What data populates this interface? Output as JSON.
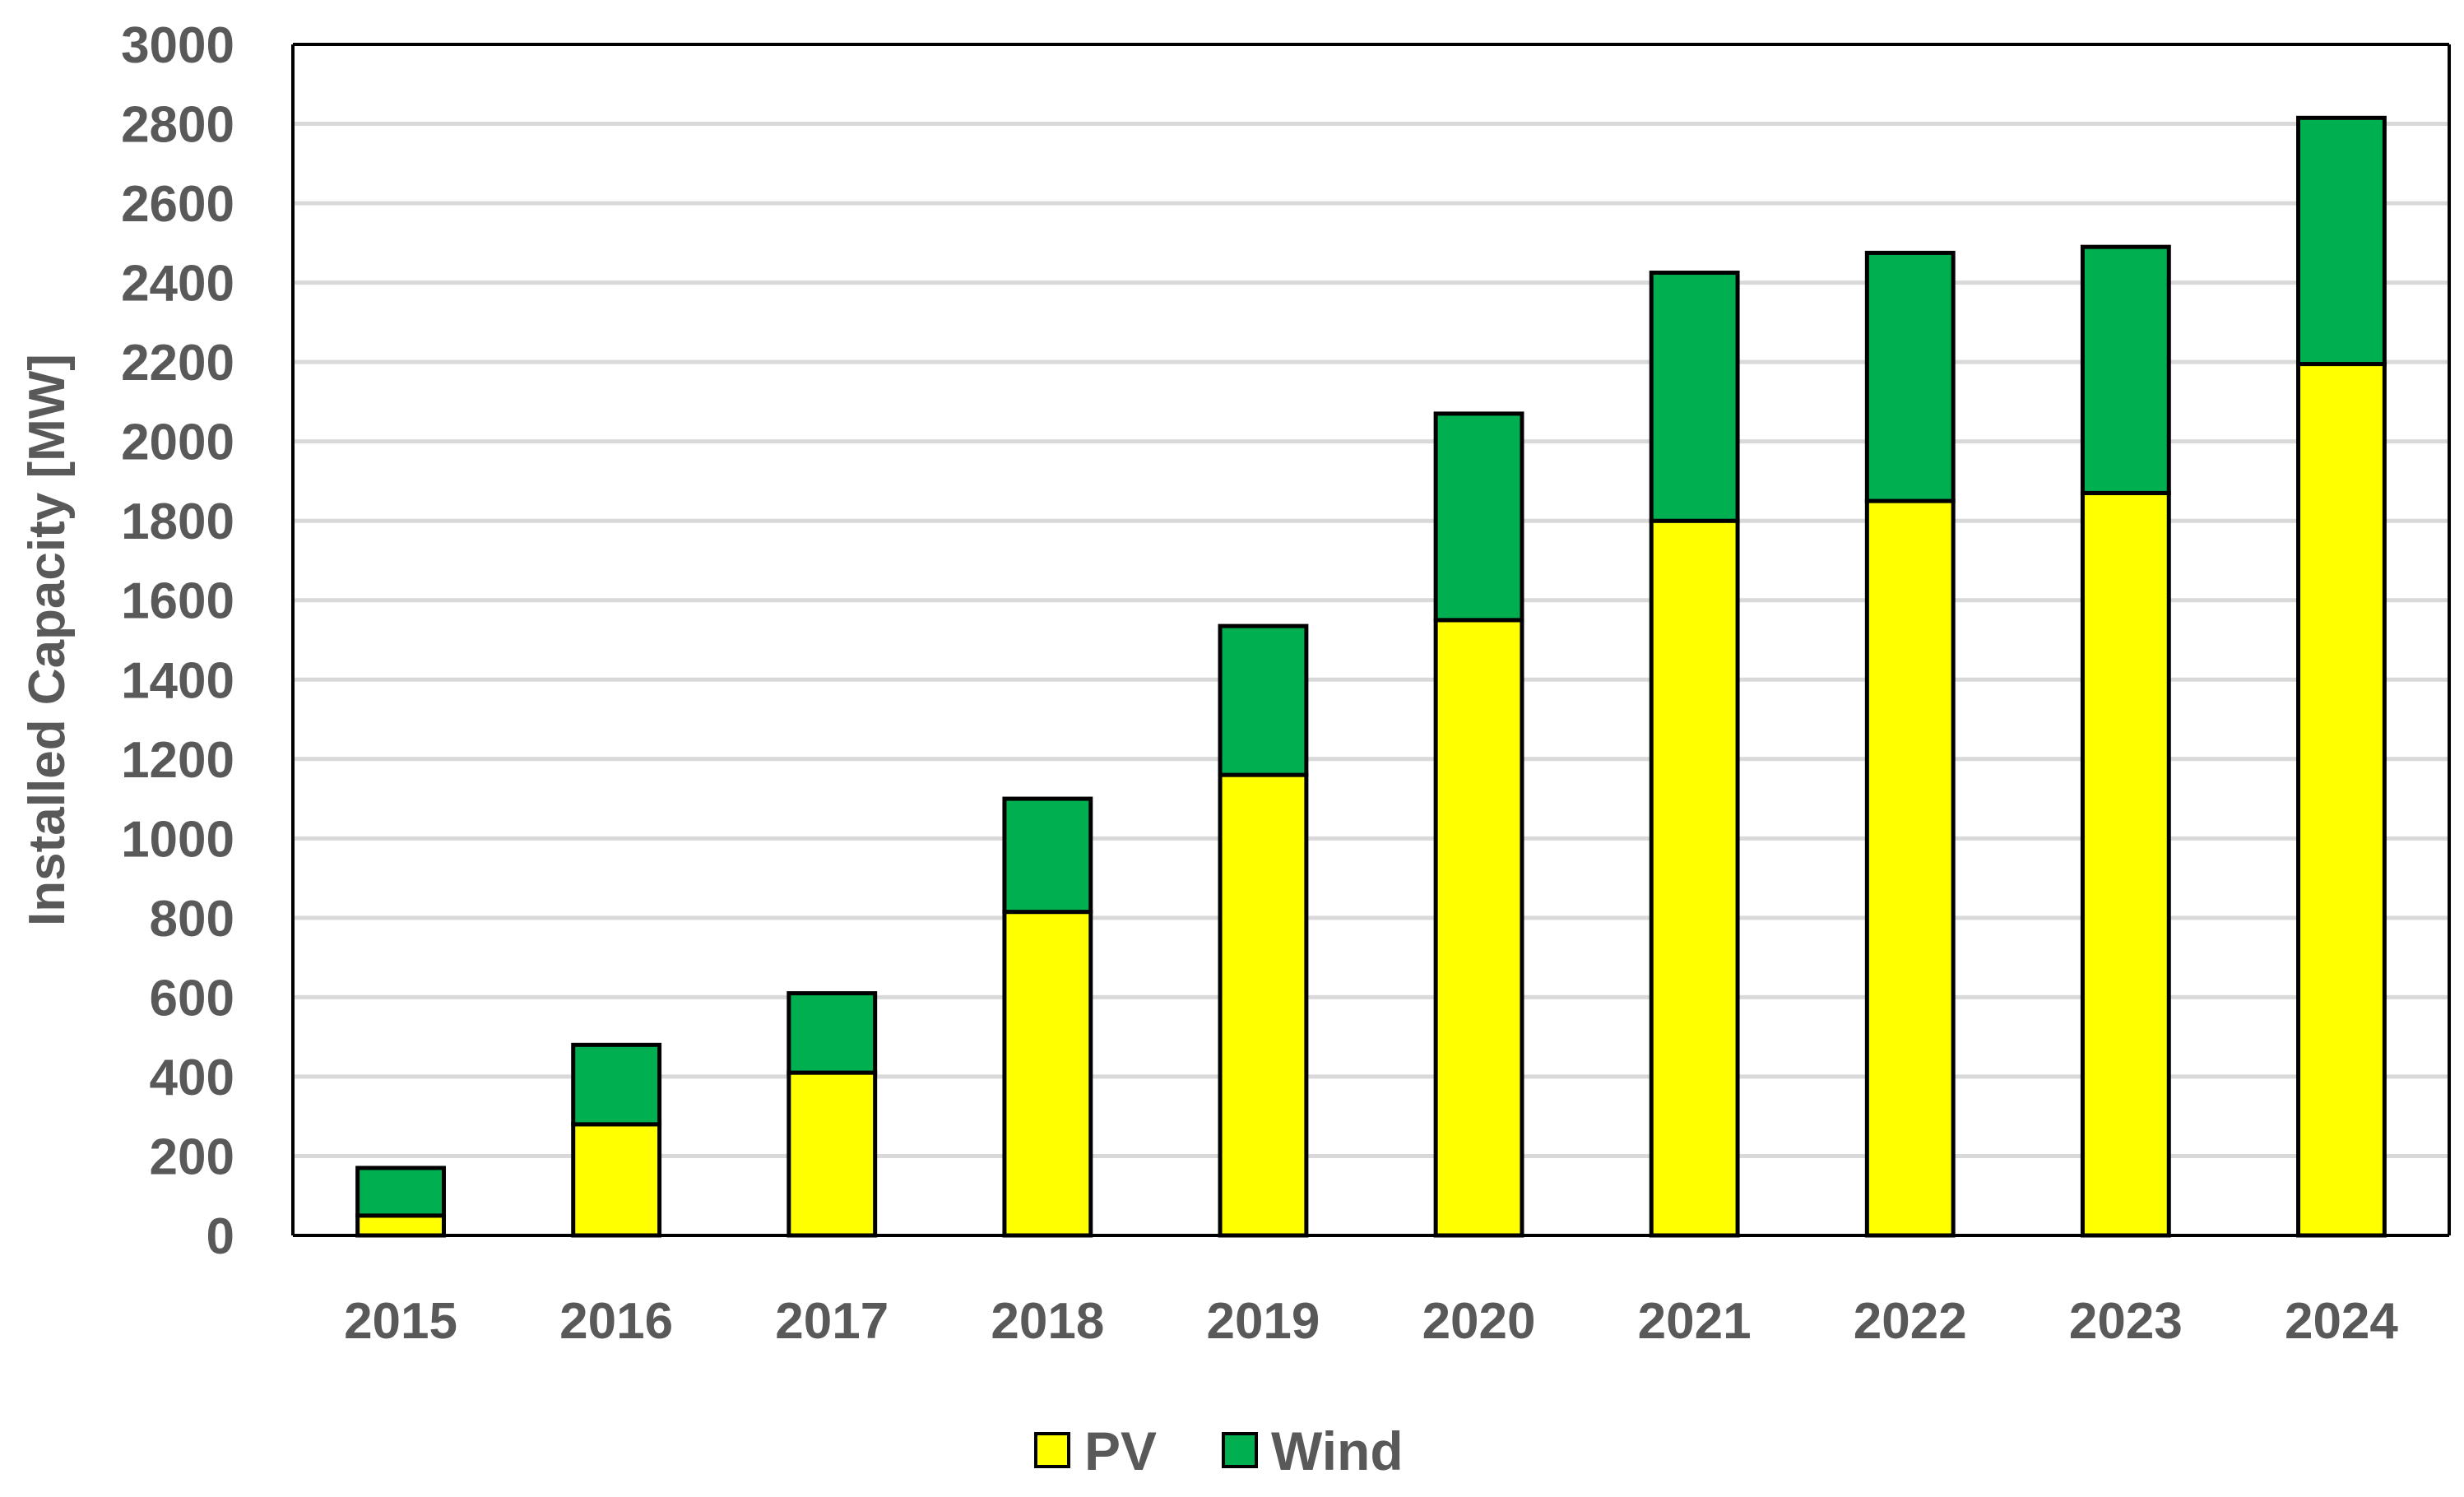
{
  "chart_data": {
    "type": "bar",
    "stacked": true,
    "categories": [
      "2015",
      "2016",
      "2017",
      "2018",
      "2019",
      "2020",
      "2021",
      "2022",
      "2023",
      "2024"
    ],
    "series": [
      {
        "name": "PV",
        "color": "#FFFF00",
        "values": [
          50,
          280,
          410,
          815,
          1160,
          1550,
          1800,
          1850,
          1870,
          2195
        ]
      },
      {
        "name": "Wind",
        "color": "#00B050",
        "values": [
          120,
          200,
          200,
          285,
          375,
          520,
          625,
          625,
          620,
          620
        ]
      }
    ],
    "title": "",
    "xlabel": "",
    "ylabel": "Installed Capacity [MW]",
    "ylim": [
      0,
      3000
    ],
    "yticks": [
      "0",
      "200",
      "400",
      "600",
      "800",
      "1000",
      "1200",
      "1400",
      "1600",
      "1800",
      "2000",
      "2200",
      "2400",
      "2600",
      "2800",
      "3000"
    ],
    "grid": true,
    "legend_position": "bottom"
  }
}
